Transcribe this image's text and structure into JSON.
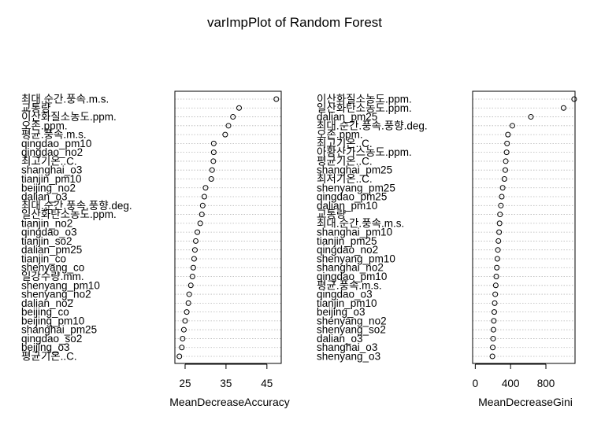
{
  "title": "varImpPlot of Random Forest",
  "chart_data": [
    {
      "type": "scatter",
      "xlabel": "MeanDecreaseAccuracy",
      "ticks": [
        25,
        35,
        45
      ],
      "xlim": [
        22.5,
        48.5
      ],
      "rows": [
        {
          "label": "최대.순간.풍속.m.s.",
          "value": 47.3
        },
        {
          "label": "교통량",
          "value": 38.2
        },
        {
          "label": "이산화질소농도.ppm.",
          "value": 36.7
        },
        {
          "label": "오존.ppm.",
          "value": 35.6
        },
        {
          "label": "평균.풍속.m.s.",
          "value": 34.8
        },
        {
          "label": "qingdao_pm10",
          "value": 32.0
        },
        {
          "label": "qingdao_no2",
          "value": 32.0
        },
        {
          "label": "최고기온..C.",
          "value": 31.9
        },
        {
          "label": "shanghai_o3",
          "value": 31.6
        },
        {
          "label": "tianjin_pm10",
          "value": 31.4
        },
        {
          "label": "beijing_no2",
          "value": 30.0
        },
        {
          "label": "dalian_o3",
          "value": 29.7
        },
        {
          "label": "최대.순간.풍속.풍향.deg.",
          "value": 29.3
        },
        {
          "label": "일산화탄소농도.ppm.",
          "value": 29.1
        },
        {
          "label": "tianjin_no2",
          "value": 28.7
        },
        {
          "label": "qingdao_o3",
          "value": 28.0
        },
        {
          "label": "tianjin_so2",
          "value": 27.6
        },
        {
          "label": "dalian_pm25",
          "value": 27.4
        },
        {
          "label": "tianjin_co",
          "value": 27.2
        },
        {
          "label": "shenyang_co",
          "value": 27.0
        },
        {
          "label": "일강수량.mm.",
          "value": 26.8
        },
        {
          "label": "shenyang_pm10",
          "value": 26.4
        },
        {
          "label": "shenyang_no2",
          "value": 26.0
        },
        {
          "label": "dalian_no2",
          "value": 25.8
        },
        {
          "label": "beijing_co",
          "value": 25.4
        },
        {
          "label": "beijing_pm10",
          "value": 25.0
        },
        {
          "label": "shanghai_pm25",
          "value": 24.7
        },
        {
          "label": "qingdao_so2",
          "value": 24.4
        },
        {
          "label": "beijing_o3",
          "value": 24.2
        },
        {
          "label": "평균기온..C.",
          "value": 23.6
        }
      ]
    },
    {
      "type": "scatter",
      "xlabel": "MeanDecreaseGini",
      "ticks": [
        0,
        400,
        800
      ],
      "xlim": [
        -30,
        1130
      ],
      "rows": [
        {
          "label": "이산화질소농도.ppm.",
          "value": 1120
        },
        {
          "label": "일산화탄소농도.ppm.",
          "value": 1000
        },
        {
          "label": "dalian_pm25",
          "value": 630
        },
        {
          "label": "최대.순간.풍속.풍향.deg.",
          "value": 420
        },
        {
          "label": "오존.ppm.",
          "value": 370
        },
        {
          "label": "최고기온..C.",
          "value": 360
        },
        {
          "label": "아황산가스농도.ppm.",
          "value": 355
        },
        {
          "label": "평균기온..C.",
          "value": 345
        },
        {
          "label": "shanghai_pm25",
          "value": 340
        },
        {
          "label": "최저기온..C.",
          "value": 330
        },
        {
          "label": "shenyang_pm25",
          "value": 310
        },
        {
          "label": "qingdao_pm25",
          "value": 300
        },
        {
          "label": "dalian_pm10",
          "value": 290
        },
        {
          "label": "교통량",
          "value": 280
        },
        {
          "label": "최대.순간.풍속.m.s.",
          "value": 275
        },
        {
          "label": "shanghai_pm10",
          "value": 270
        },
        {
          "label": "tianjin_pm25",
          "value": 262
        },
        {
          "label": "qingdao_no2",
          "value": 256
        },
        {
          "label": "shenyang_pm10",
          "value": 250
        },
        {
          "label": "shanghai_no2",
          "value": 244
        },
        {
          "label": "qingdao_pm10",
          "value": 238
        },
        {
          "label": "평균.풍속.m.s.",
          "value": 232
        },
        {
          "label": "qingdao_o3",
          "value": 226
        },
        {
          "label": "tianjin_pm10",
          "value": 220
        },
        {
          "label": "beijing_o3",
          "value": 215
        },
        {
          "label": "shenyang_no2",
          "value": 210
        },
        {
          "label": "shenyang_so2",
          "value": 206
        },
        {
          "label": "dalian_o3",
          "value": 202
        },
        {
          "label": "shanghai_o3",
          "value": 198
        },
        {
          "label": "shenyang_o3",
          "value": 194
        }
      ]
    }
  ]
}
